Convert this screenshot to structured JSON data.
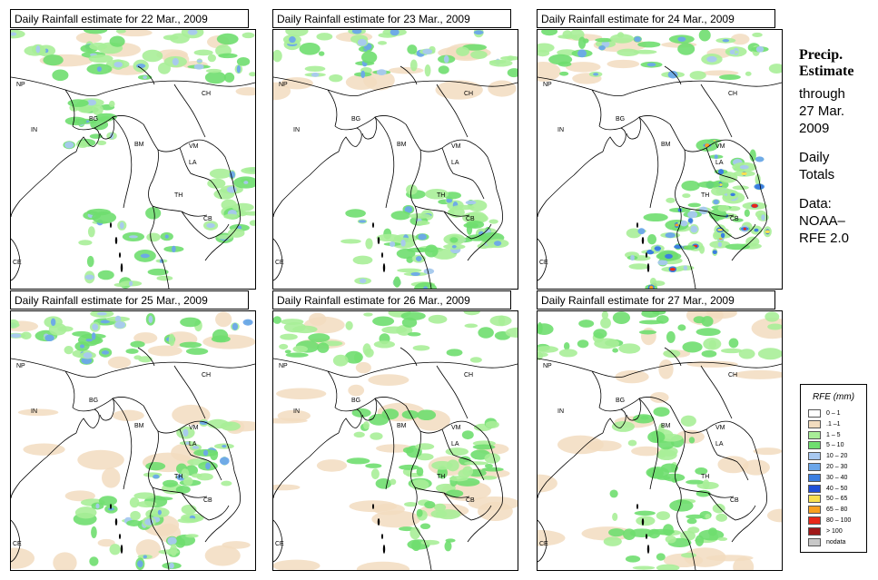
{
  "panels": [
    {
      "title": "Daily Rainfall estimate for  22 Mar., 2009",
      "date": "22 Mar., 2009",
      "intensity": "moderate",
      "rain_zones": [
        "north",
        "myanmar-coast",
        "vietnam-coast",
        "south"
      ]
    },
    {
      "title": "Daily Rainfall estimate for  23 Mar., 2009",
      "date": "23 Mar., 2009",
      "intensity": "moderate",
      "rain_zones": [
        "north",
        "thailand",
        "cambodia",
        "south"
      ]
    },
    {
      "title": "Daily Rainfall estimate for  24 Mar., 2009",
      "date": "24 Mar., 2009",
      "intensity": "heavy",
      "rain_zones": [
        "north",
        "laos",
        "cambodia",
        "thailand",
        "south"
      ]
    },
    {
      "title": "Daily Rainfall estimate for  25 Mar., 2009",
      "date": "25 Mar., 2009",
      "intensity": "moderate",
      "rain_zones": [
        "north",
        "laos",
        "thailand",
        "south"
      ]
    },
    {
      "title": "Daily Rainfall estimate for  26 Mar., 2009",
      "date": "26 Mar., 2009",
      "intensity": "light",
      "rain_zones": [
        "north",
        "myanmar",
        "thailand",
        "laos"
      ]
    },
    {
      "title": "Daily Rainfall estimate for  27 Mar., 2009",
      "date": "27 Mar., 2009",
      "intensity": "light",
      "rain_zones": [
        "north",
        "myanmar",
        "thailand",
        "south"
      ]
    }
  ],
  "country_labels": [
    "NP",
    "CH",
    "IN",
    "BG",
    "BM",
    "VM",
    "LA",
    "TH",
    "CB",
    "CE"
  ],
  "side": {
    "title_line1": "Precip.",
    "title_line2": "Estimate",
    "through_label": "through",
    "date_line1": "27 Mar.",
    "date_line2": "2009",
    "daily_line1": "Daily",
    "daily_line2": "Totals",
    "data_line1": "Data:",
    "data_line2": "NOAA–",
    "data_line3": "RFE 2.0"
  },
  "legend": {
    "title": "RFE (mm)",
    "items": [
      {
        "label": "0 – 1",
        "color": "#ffffff"
      },
      {
        "label": ".1 –1",
        "color": "#f2dcbf"
      },
      {
        "label": "1 – 5",
        "color": "#a8ee98"
      },
      {
        "label": "5 – 10",
        "color": "#6fde6f"
      },
      {
        "label": "10 – 20",
        "color": "#a8c8f0"
      },
      {
        "label": "20 – 30",
        "color": "#6ba6ea"
      },
      {
        "label": "30 – 40",
        "color": "#3b7ee0"
      },
      {
        "label": "40 – 50",
        "color": "#1f4fd8"
      },
      {
        "label": "50 – 65",
        "color": "#f8e050"
      },
      {
        "label": "65 – 80",
        "color": "#f8a020"
      },
      {
        "label": "80 – 100",
        "color": "#e82818"
      },
      {
        "label": "> 100",
        "color": "#a01818"
      },
      {
        "label": "nodata",
        "color": "#c8c8c8"
      }
    ]
  }
}
